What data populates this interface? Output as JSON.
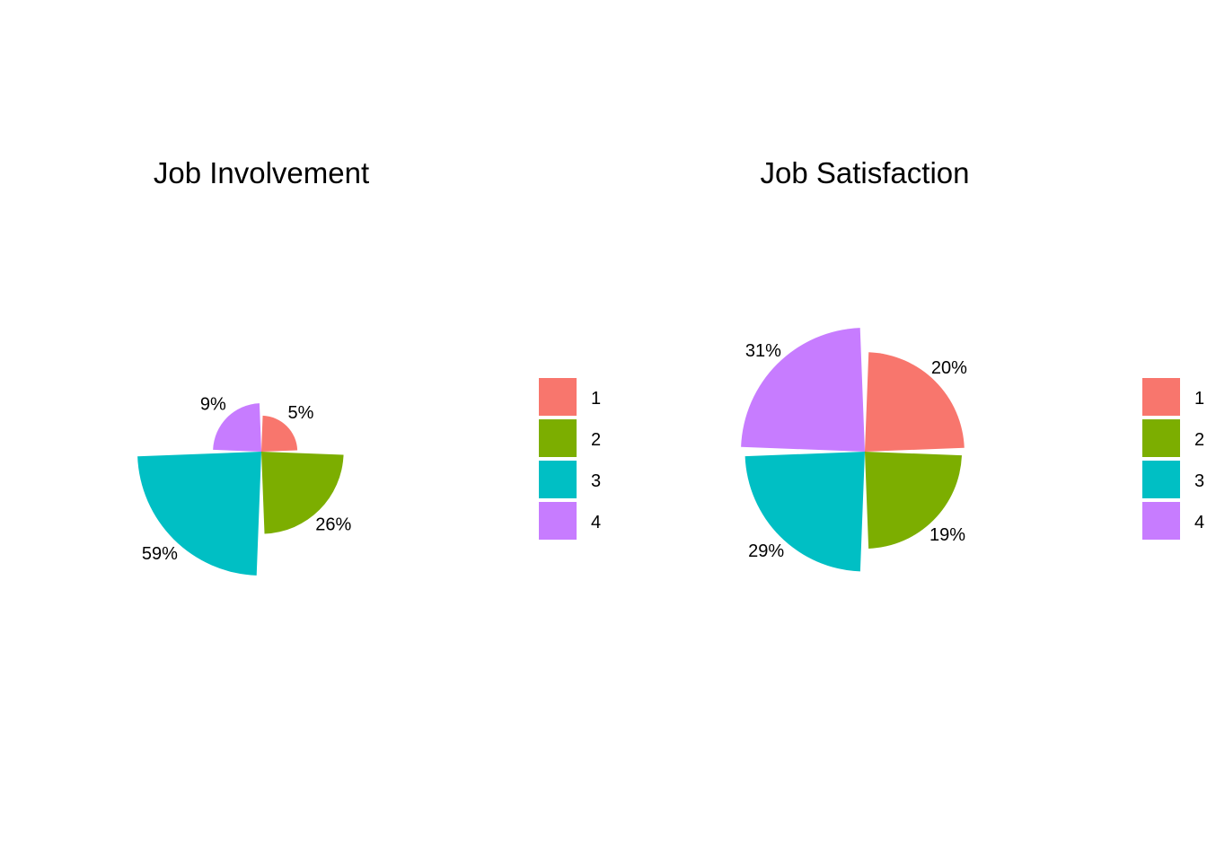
{
  "chart_data": [
    {
      "type": "pie",
      "subtype": "coxcomb",
      "title": "Job Involvement",
      "categories": [
        "1",
        "2",
        "3",
        "4"
      ],
      "values": [
        5,
        26,
        59,
        9
      ],
      "labels": [
        "5%",
        "26%",
        "59%",
        "9%"
      ],
      "colors": [
        "#F8766D",
        "#7CAE00",
        "#00BFC4",
        "#C77CFF"
      ],
      "legend": {
        "placement": "right",
        "entries": [
          "1",
          "2",
          "3",
          "4"
        ]
      },
      "grid": false
    },
    {
      "type": "pie",
      "subtype": "coxcomb",
      "title": "Job Satisfaction",
      "categories": [
        "1",
        "2",
        "3",
        "4"
      ],
      "values": [
        20,
        19,
        29,
        31
      ],
      "labels": [
        "20%",
        "19%",
        "29%",
        "31%"
      ],
      "colors": [
        "#F8766D",
        "#7CAE00",
        "#00BFC4",
        "#C77CFF"
      ],
      "legend": {
        "placement": "right",
        "entries": [
          "1",
          "2",
          "3",
          "4"
        ]
      },
      "grid": false
    }
  ]
}
